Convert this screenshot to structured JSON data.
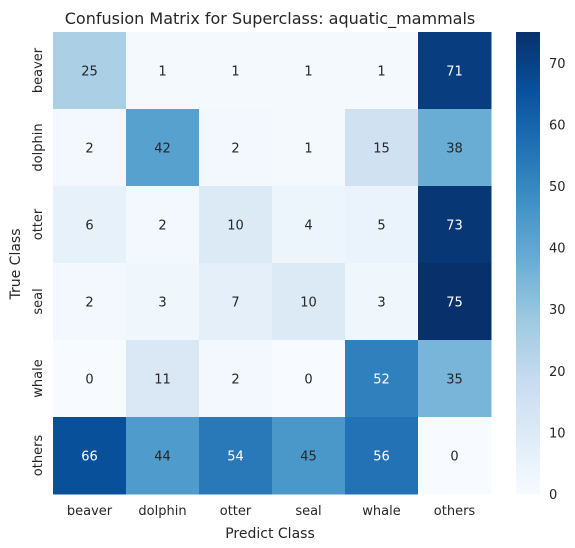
{
  "chart_data": {
    "type": "heatmap",
    "title": "Confusion Matrix for Superclass: aquatic_mammals",
    "xlabel": "Predict Class",
    "ylabel": "True Class",
    "x_categories": [
      "beaver",
      "dolphin",
      "otter",
      "seal",
      "whale",
      "others"
    ],
    "y_categories": [
      "beaver",
      "dolphin",
      "otter",
      "seal",
      "whale",
      "others"
    ],
    "values": [
      [
        25,
        1,
        1,
        1,
        1,
        71
      ],
      [
        2,
        42,
        2,
        1,
        15,
        38
      ],
      [
        6,
        2,
        10,
        4,
        5,
        73
      ],
      [
        2,
        3,
        7,
        10,
        3,
        75
      ],
      [
        0,
        11,
        2,
        0,
        52,
        35
      ],
      [
        66,
        44,
        54,
        45,
        56,
        0
      ]
    ],
    "colorscale": "Blues",
    "vmin": 0,
    "vmax": 75,
    "colorbar_ticks": [
      0,
      10,
      20,
      30,
      40,
      50,
      60,
      70
    ]
  }
}
